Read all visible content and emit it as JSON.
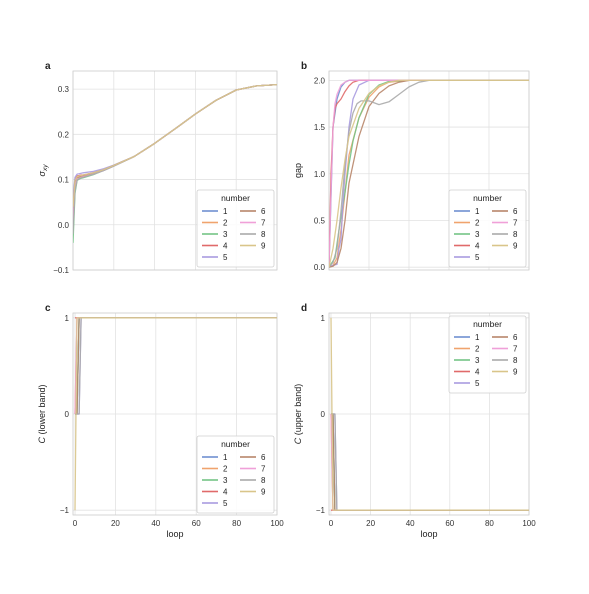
{
  "chart_data": [
    {
      "panel": "a",
      "type": "line",
      "xlabel": "",
      "ylabel": "σ_xy",
      "xlim": [
        0,
        100
      ],
      "ylim": [
        -0.1,
        0.34
      ],
      "xticks": [],
      "yticks": [
        -0.1,
        0.0,
        0.1,
        0.2,
        0.3
      ],
      "ytick_labels": [
        "−0.1",
        "0.0",
        "0.1",
        "0.2",
        "0.3"
      ],
      "grid": true,
      "legend": {
        "title": "number",
        "position": "lower-right",
        "entries": [
          "1",
          "2",
          "3",
          "4",
          "5",
          "6",
          "7",
          "8",
          "9"
        ]
      },
      "series": [
        {
          "name": "1",
          "x": [
            0,
            1,
            2,
            3,
            4,
            5,
            10,
            15,
            20,
            30,
            40,
            50,
            60,
            70,
            80,
            90,
            100
          ],
          "values": [
            0.0,
            0.08,
            0.1,
            0.102,
            0.104,
            0.105,
            0.112,
            0.12,
            0.13,
            0.151,
            0.18,
            0.212,
            0.245,
            0.275,
            0.298,
            0.307,
            0.31
          ]
        },
        {
          "name": "2",
          "x": [
            0,
            1,
            2,
            3,
            4,
            5,
            10,
            15,
            20,
            30,
            40,
            50,
            60,
            70,
            80,
            90,
            100
          ],
          "values": [
            0.02,
            0.09,
            0.103,
            0.105,
            0.106,
            0.107,
            0.113,
            0.121,
            0.131,
            0.151,
            0.18,
            0.212,
            0.245,
            0.275,
            0.298,
            0.307,
            0.31
          ]
        },
        {
          "name": "3",
          "x": [
            0,
            1,
            2,
            3,
            4,
            5,
            10,
            15,
            20,
            30,
            40,
            50,
            60,
            70,
            80,
            90,
            100
          ],
          "values": [
            -0.04,
            0.07,
            0.098,
            0.101,
            0.103,
            0.104,
            0.111,
            0.12,
            0.13,
            0.151,
            0.18,
            0.212,
            0.245,
            0.275,
            0.298,
            0.307,
            0.31
          ]
        },
        {
          "name": "4",
          "x": [
            0,
            1,
            2,
            3,
            4,
            5,
            10,
            15,
            20,
            30,
            40,
            50,
            60,
            70,
            80,
            90,
            100
          ],
          "values": [
            0.05,
            0.1,
            0.108,
            0.109,
            0.11,
            0.11,
            0.115,
            0.122,
            0.131,
            0.151,
            0.18,
            0.212,
            0.245,
            0.275,
            0.298,
            0.307,
            0.31
          ]
        },
        {
          "name": "5",
          "x": [
            0,
            1,
            2,
            3,
            4,
            5,
            10,
            15,
            20,
            30,
            40,
            50,
            60,
            70,
            80,
            90,
            100
          ],
          "values": [
            0.06,
            0.105,
            0.112,
            0.113,
            0.114,
            0.115,
            0.118,
            0.124,
            0.132,
            0.151,
            0.18,
            0.212,
            0.245,
            0.275,
            0.298,
            0.307,
            0.31
          ]
        },
        {
          "name": "6",
          "x": [
            0,
            1,
            2,
            3,
            4,
            5,
            10,
            15,
            20,
            30,
            40,
            50,
            60,
            70,
            80,
            90,
            100
          ],
          "values": [
            0.03,
            0.095,
            0.104,
            0.106,
            0.107,
            0.108,
            0.114,
            0.121,
            0.131,
            0.151,
            0.18,
            0.212,
            0.245,
            0.275,
            0.298,
            0.307,
            0.31
          ]
        },
        {
          "name": "7",
          "x": [
            0,
            1,
            2,
            3,
            4,
            5,
            10,
            15,
            20,
            30,
            40,
            50,
            60,
            70,
            80,
            90,
            100
          ],
          "values": [
            0.01,
            0.085,
            0.101,
            0.103,
            0.105,
            0.106,
            0.112,
            0.12,
            0.13,
            0.151,
            0.18,
            0.212,
            0.245,
            0.275,
            0.298,
            0.307,
            0.31
          ]
        },
        {
          "name": "8",
          "x": [
            0,
            1,
            2,
            3,
            4,
            5,
            10,
            15,
            20,
            30,
            40,
            50,
            60,
            70,
            80,
            90,
            100
          ],
          "values": [
            -0.02,
            0.075,
            0.099,
            0.102,
            0.104,
            0.105,
            0.112,
            0.12,
            0.13,
            0.151,
            0.18,
            0.212,
            0.245,
            0.275,
            0.298,
            0.307,
            0.31
          ]
        },
        {
          "name": "9",
          "x": [
            0,
            1,
            2,
            3,
            4,
            5,
            10,
            15,
            20,
            30,
            40,
            50,
            60,
            70,
            80,
            90,
            100
          ],
          "values": [
            0.04,
            0.098,
            0.106,
            0.108,
            0.109,
            0.11,
            0.115,
            0.122,
            0.131,
            0.151,
            0.18,
            0.212,
            0.245,
            0.275,
            0.298,
            0.307,
            0.31
          ]
        }
      ]
    },
    {
      "panel": "b",
      "type": "line",
      "xlabel": "",
      "ylabel": "gap",
      "xlim": [
        0,
        100
      ],
      "ylim": [
        -0.03,
        2.1
      ],
      "xticks": [],
      "yticks": [
        0.0,
        0.5,
        1.0,
        1.5,
        2.0
      ],
      "ytick_labels": [
        "0.0",
        "0.5",
        "1.0",
        "1.5",
        "2.0"
      ],
      "grid": true,
      "legend": {
        "title": "number",
        "position": "lower-right",
        "entries": [
          "1",
          "2",
          "3",
          "4",
          "5",
          "6",
          "7",
          "8",
          "9"
        ]
      },
      "series": [
        {
          "name": "1",
          "x": [
            0,
            2,
            4,
            6,
            8,
            10,
            12,
            15,
            20,
            100
          ],
          "values": [
            0.0,
            1.5,
            1.8,
            1.93,
            1.98,
            2.0,
            2.0,
            2.0,
            2.0,
            2.0
          ]
        },
        {
          "name": "2",
          "x": [
            0,
            2,
            4,
            6,
            8,
            10,
            15,
            20,
            25,
            30,
            40,
            100
          ],
          "values": [
            0.0,
            0.02,
            0.1,
            0.4,
            0.8,
            1.2,
            1.6,
            1.82,
            1.93,
            1.98,
            2.0,
            2.0
          ]
        },
        {
          "name": "3",
          "x": [
            0,
            3,
            5,
            8,
            10,
            12,
            15,
            20,
            25,
            30,
            40,
            100
          ],
          "values": [
            0.0,
            0.1,
            0.4,
            0.8,
            1.1,
            1.35,
            1.6,
            1.85,
            1.95,
            1.99,
            2.0,
            2.0
          ]
        },
        {
          "name": "4",
          "x": [
            0,
            1,
            2,
            3,
            4,
            6,
            8,
            10,
            12,
            15,
            20,
            100
          ],
          "values": [
            0.0,
            1.0,
            1.5,
            1.7,
            1.75,
            1.8,
            1.88,
            1.94,
            1.98,
            2.0,
            2.0,
            2.0
          ]
        },
        {
          "name": "5",
          "x": [
            0,
            2,
            4,
            5,
            6,
            7,
            8,
            10,
            12,
            15,
            20,
            25,
            100
          ],
          "values": [
            0.0,
            0.02,
            0.03,
            0.2,
            0.3,
            0.7,
            1.0,
            1.5,
            1.8,
            1.95,
            2.0,
            2.0,
            2.0
          ]
        },
        {
          "name": "6",
          "x": [
            0,
            2,
            4,
            6,
            8,
            10,
            15,
            20,
            25,
            30,
            35,
            40,
            100
          ],
          "values": [
            0.0,
            0.01,
            0.05,
            0.2,
            0.5,
            0.9,
            1.4,
            1.72,
            1.86,
            1.94,
            1.98,
            2.0,
            2.0
          ]
        },
        {
          "name": "7",
          "x": [
            0,
            1,
            2,
            3,
            4,
            5,
            6,
            8,
            10,
            15,
            100
          ],
          "values": [
            0.0,
            0.8,
            1.5,
            1.75,
            1.85,
            1.9,
            1.95,
            1.98,
            2.0,
            2.0,
            2.0
          ]
        },
        {
          "name": "8",
          "x": [
            0,
            2,
            4,
            6,
            8,
            10,
            12,
            14,
            16,
            20,
            25,
            30,
            35,
            40,
            45,
            50,
            100
          ],
          "values": [
            0.0,
            0.05,
            0.2,
            0.6,
            1.1,
            1.45,
            1.65,
            1.75,
            1.78,
            1.78,
            1.74,
            1.77,
            1.85,
            1.93,
            1.98,
            2.0,
            2.0
          ]
        },
        {
          "name": "9",
          "x": [
            0,
            2,
            4,
            6,
            8,
            10,
            15,
            20,
            25,
            30,
            35,
            100
          ],
          "values": [
            0.0,
            0.2,
            0.5,
            0.85,
            1.15,
            1.4,
            1.7,
            1.86,
            1.94,
            1.98,
            2.0,
            2.0
          ]
        }
      ]
    },
    {
      "panel": "c",
      "type": "line",
      "xlabel": "loop",
      "ylabel": "C (lower band)",
      "xlim": [
        -1,
        100
      ],
      "ylim": [
        -1.05,
        1.05
      ],
      "xticks": [
        0,
        20,
        40,
        60,
        80,
        100
      ],
      "yticks": [
        -1,
        0,
        1
      ],
      "ytick_labels": [
        "−1",
        "0",
        "1"
      ],
      "grid": true,
      "legend": {
        "title": "number",
        "position": "lower-right",
        "entries": [
          "1",
          "2",
          "3",
          "4",
          "5",
          "6",
          "7",
          "8",
          "9"
        ]
      },
      "series": [
        {
          "name": "1",
          "x": [
            0,
            1,
            2,
            3,
            100
          ],
          "values": [
            0,
            0,
            1,
            1,
            1
          ]
        },
        {
          "name": "2",
          "x": [
            0,
            1,
            2,
            100
          ],
          "values": [
            0,
            1,
            1,
            1
          ]
        },
        {
          "name": "3",
          "x": [
            0,
            1,
            2,
            3,
            100
          ],
          "values": [
            0,
            0,
            1,
            1,
            1
          ]
        },
        {
          "name": "4",
          "x": [
            0,
            1,
            2,
            100
          ],
          "values": [
            1,
            1,
            1,
            1
          ]
        },
        {
          "name": "5",
          "x": [
            0,
            1,
            2,
            3,
            4,
            100
          ],
          "values": [
            0,
            0,
            0,
            1,
            1,
            1
          ]
        },
        {
          "name": "6",
          "x": [
            0,
            1,
            2,
            3,
            100
          ],
          "values": [
            0,
            0,
            1,
            1,
            1
          ]
        },
        {
          "name": "7",
          "x": [
            0,
            1,
            2,
            100
          ],
          "values": [
            0,
            1,
            1,
            1
          ]
        },
        {
          "name": "8",
          "x": [
            0,
            1,
            2,
            3,
            4,
            100
          ],
          "values": [
            0,
            0,
            0,
            1,
            1,
            1
          ]
        },
        {
          "name": "9",
          "x": [
            0,
            1,
            2,
            100
          ],
          "values": [
            -1,
            1,
            1,
            1
          ]
        }
      ]
    },
    {
      "panel": "d",
      "type": "line",
      "xlabel": "loop",
      "ylabel": "C (upper band)",
      "xlim": [
        -1,
        100
      ],
      "ylim": [
        -1.05,
        1.05
      ],
      "xticks": [
        0,
        20,
        40,
        60,
        80,
        100
      ],
      "yticks": [
        -1,
        0,
        1
      ],
      "ytick_labels": [
        "−1",
        "0",
        "1"
      ],
      "grid": true,
      "legend": {
        "title": "number",
        "position": "upper-right",
        "entries": [
          "1",
          "2",
          "3",
          "4",
          "5",
          "6",
          "7",
          "8",
          "9"
        ]
      },
      "series": [
        {
          "name": "1",
          "x": [
            0,
            1,
            2,
            3,
            100
          ],
          "values": [
            0,
            0,
            -1,
            -1,
            -1
          ]
        },
        {
          "name": "2",
          "x": [
            0,
            1,
            2,
            100
          ],
          "values": [
            0,
            -1,
            -1,
            -1
          ]
        },
        {
          "name": "3",
          "x": [
            0,
            1,
            2,
            3,
            100
          ],
          "values": [
            0,
            0,
            -1,
            -1,
            -1
          ]
        },
        {
          "name": "4",
          "x": [
            0,
            1,
            2,
            100
          ],
          "values": [
            -1,
            -1,
            -1,
            -1
          ]
        },
        {
          "name": "5",
          "x": [
            0,
            1,
            2,
            3,
            4,
            100
          ],
          "values": [
            0,
            0,
            0,
            -1,
            -1,
            -1
          ]
        },
        {
          "name": "6",
          "x": [
            0,
            1,
            2,
            3,
            100
          ],
          "values": [
            0,
            0,
            -1,
            -1,
            -1
          ]
        },
        {
          "name": "7",
          "x": [
            0,
            1,
            2,
            100
          ],
          "values": [
            0,
            -1,
            -1,
            -1
          ]
        },
        {
          "name": "8",
          "x": [
            0,
            1,
            2,
            3,
            4,
            100
          ],
          "values": [
            0,
            0,
            0,
            -1,
            -1,
            -1
          ]
        },
        {
          "name": "9",
          "x": [
            0,
            1,
            2,
            100
          ],
          "values": [
            1,
            -1,
            -1,
            -1
          ]
        }
      ]
    }
  ],
  "series_colors": {
    "1": "#6f8fd0",
    "2": "#f0a36d",
    "3": "#74c486",
    "4": "#e06a6a",
    "5": "#a89be0",
    "6": "#b8866a",
    "7": "#f0a0d8",
    "8": "#aaaaaa",
    "9": "#d9c58a"
  }
}
